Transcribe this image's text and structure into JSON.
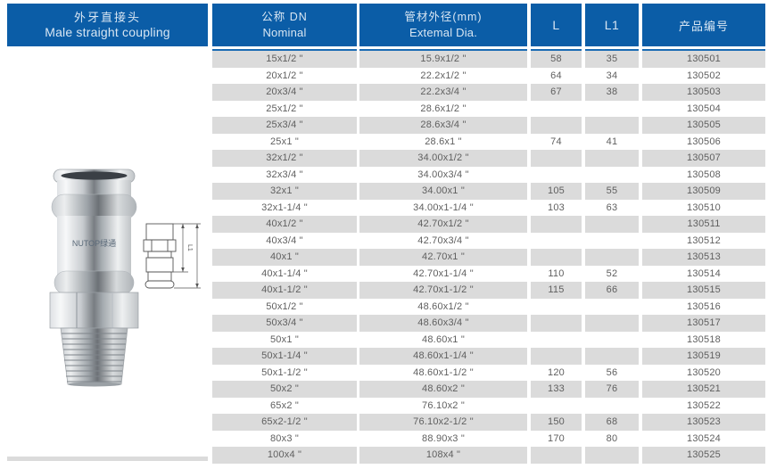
{
  "product": {
    "title_zh": "外牙直接头",
    "title_en": "Male straight coupling",
    "brand_marking": "NUTOP绿通"
  },
  "drawing": {
    "inner_dim_label": "L1"
  },
  "columns": [
    {
      "key": "nominal",
      "title_zh": "公称 DN",
      "title_en": "Nominal"
    },
    {
      "key": "external",
      "title_zh": "管材外径(mm)",
      "title_en": "Extemal Dia."
    },
    {
      "key": "l",
      "title": "L"
    },
    {
      "key": "l1",
      "title": "L1"
    },
    {
      "key": "code",
      "title": "产品编号"
    }
  ],
  "table": {
    "rows": [
      {
        "nominal": "15x1/2 \"",
        "external": "15.9x1/2 \"",
        "l": "58",
        "l1": "35",
        "code": "130501"
      },
      {
        "nominal": "20x1/2 \"",
        "external": "22.2x1/2 \"",
        "l": "64",
        "l1": "34",
        "code": "130502"
      },
      {
        "nominal": "20x3/4 \"",
        "external": "22.2x3/4 \"",
        "l": "67",
        "l1": "38",
        "code": "130503"
      },
      {
        "nominal": "25x1/2 \"",
        "external": "28.6x1/2 \"",
        "l": "",
        "l1": "",
        "code": "130504"
      },
      {
        "nominal": "25x3/4 \"",
        "external": "28.6x3/4 \"",
        "l": "",
        "l1": "",
        "code": "130505"
      },
      {
        "nominal": "25x1 \"",
        "external": "28.6x1 \"",
        "l": "74",
        "l1": "41",
        "code": "130506"
      },
      {
        "nominal": "32x1/2 \"",
        "external": "34.00x1/2 \"",
        "l": "",
        "l1": "",
        "code": "130507"
      },
      {
        "nominal": "32x3/4 \"",
        "external": "34.00x3/4 \"",
        "l": "",
        "l1": "",
        "code": "130508"
      },
      {
        "nominal": "32x1 \"",
        "external": "34.00x1 \"",
        "l": "105",
        "l1": "55",
        "code": "130509"
      },
      {
        "nominal": "32x1-1/4 \"",
        "external": "34.00x1-1/4 \"",
        "l": "103",
        "l1": "63",
        "code": "130510"
      },
      {
        "nominal": "40x1/2 \"",
        "external": "42.70x1/2 \"",
        "l": "",
        "l1": "",
        "code": "130511"
      },
      {
        "nominal": "40x3/4 \"",
        "external": "42.70x3/4 \"",
        "l": "",
        "l1": "",
        "code": "130512"
      },
      {
        "nominal": "40x1 \"",
        "external": "42.70x1 \"",
        "l": "",
        "l1": "",
        "code": "130513"
      },
      {
        "nominal": "40x1-1/4 \"",
        "external": "42.70x1-1/4 \"",
        "l": "110",
        "l1": "52",
        "code": "130514"
      },
      {
        "nominal": "40x1-1/2 \"",
        "external": "42.70x1-1/2 \"",
        "l": "115",
        "l1": "66",
        "code": "130515"
      },
      {
        "nominal": "50x1/2 \"",
        "external": "48.60x1/2 \"",
        "l": "",
        "l1": "",
        "code": "130516"
      },
      {
        "nominal": "50x3/4 \"",
        "external": "48.60x3/4 \"",
        "l": "",
        "l1": "",
        "code": "130517"
      },
      {
        "nominal": "50x1 \"",
        "external": "48.60x1 \"",
        "l": "",
        "l1": "",
        "code": "130518"
      },
      {
        "nominal": "50x1-1/4 \"",
        "external": "48.60x1-1/4 \"",
        "l": "",
        "l1": "",
        "code": "130519"
      },
      {
        "nominal": "50x1-1/2 \"",
        "external": "48.60x1-1/2 \"",
        "l": "120",
        "l1": "56",
        "code": "130520"
      },
      {
        "nominal": "50x2 \"",
        "external": "48.60x2 \"",
        "l": "133",
        "l1": "76",
        "code": "130521"
      },
      {
        "nominal": "65x2 \"",
        "external": "76.10x2 \"",
        "l": "",
        "l1": "",
        "code": "130522"
      },
      {
        "nominal": "65x2-1/2 \"",
        "external": "76.10x2-1/2 \"",
        "l": "150",
        "l1": "68",
        "code": "130523"
      },
      {
        "nominal": "80x3 \"",
        "external": "88.90x3 \"",
        "l": "170",
        "l1": "80",
        "code": "130524"
      },
      {
        "nominal": "100x4 \"",
        "external": "108x4 \"",
        "l": "",
        "l1": "",
        "code": "130525"
      }
    ]
  },
  "colors": {
    "header_blue": "#0b5da7",
    "accent_blue": "#1a6bb3",
    "stripe_gray": "#dbdbdb",
    "header_text": "#d8e6f3",
    "row_text": "#5f5f5f"
  }
}
